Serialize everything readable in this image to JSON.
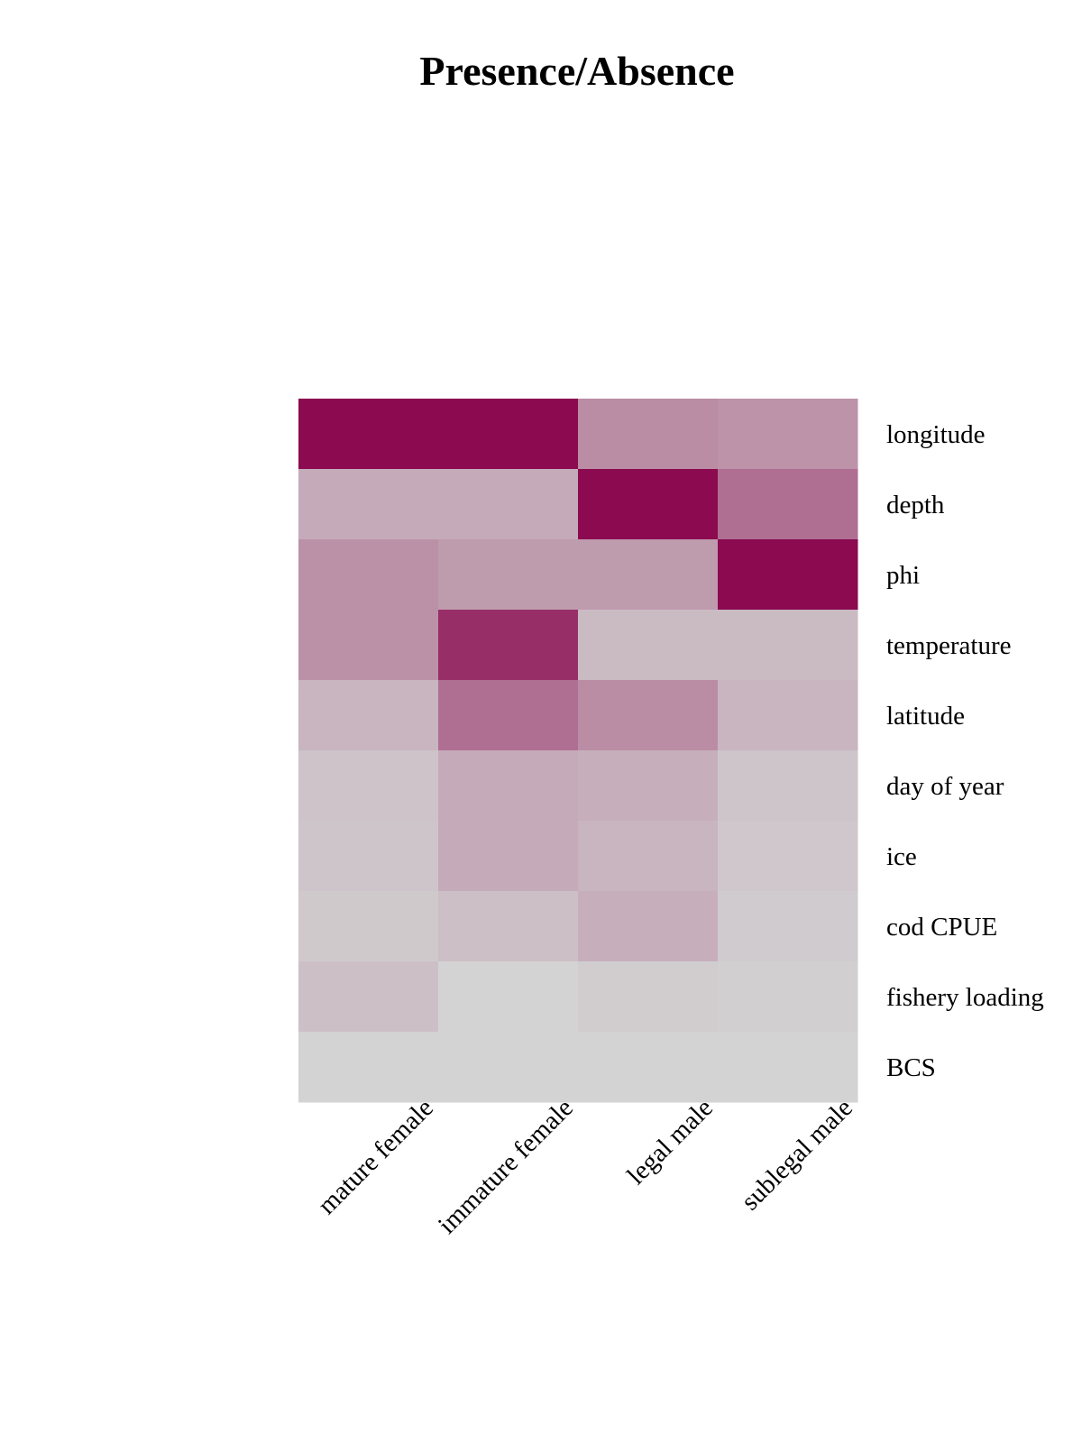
{
  "chart_data": {
    "type": "heatmap",
    "title": "Presence/Absence",
    "columns": [
      "mature female",
      "immature female",
      "legal male",
      "sublegal male"
    ],
    "rows": [
      "longitude",
      "depth",
      "phi",
      "temperature",
      "latitude",
      "day of year",
      "ice",
      "cod CPUE",
      "fishery loading",
      "BCS"
    ],
    "values": [
      [
        1.0,
        1.0,
        0.35,
        0.32
      ],
      [
        0.2,
        0.2,
        1.0,
        0.5
      ],
      [
        0.33,
        0.28,
        0.28,
        1.0
      ],
      [
        0.33,
        0.82,
        0.12,
        0.12
      ],
      [
        0.15,
        0.5,
        0.35,
        0.15
      ],
      [
        0.08,
        0.2,
        0.18,
        0.07
      ],
      [
        0.07,
        0.2,
        0.15,
        0.06
      ],
      [
        0.05,
        0.1,
        0.18,
        0.04
      ],
      [
        0.1,
        0.0,
        0.03,
        0.02
      ],
      [
        0.0,
        0.0,
        0.0,
        0.0
      ]
    ],
    "color_low": "#d3d3d3",
    "color_high": "#8b0a50",
    "grid": false,
    "legend": "none"
  }
}
